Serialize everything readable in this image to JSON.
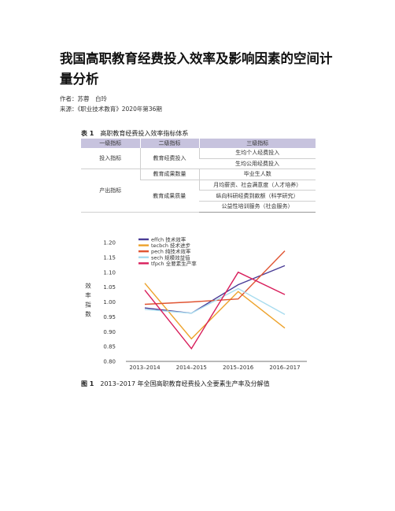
{
  "article": {
    "title": "我国高职教育经费投入效率及影响因素的空间计量分析",
    "authors": "作者：苏蓉　白玲",
    "source": "来源：《职业技术教育》2020年第36期"
  },
  "table": {
    "number": "表 1",
    "caption": "高职教育经费投入效率指标体系",
    "headers": [
      "一级指标",
      "二级指标",
      "三级指标"
    ],
    "groups": [
      {
        "level1": "投入指标",
        "subgroups": [
          {
            "level2": "教育经费投入",
            "level3": [
              "生均个人经费投入",
              "生均公用经费投入"
            ]
          }
        ]
      },
      {
        "level1": "产出指标",
        "subgroups": [
          {
            "level2": "教育成果数量",
            "level3": [
              "毕业生人数"
            ]
          },
          {
            "level2": "教育成果质量",
            "level3": [
              "月均薪资、社会满意度（人才培养）",
              "纵向科研经费到款额（科学研究）",
              "公益性培训服务（社会服务）"
            ]
          }
        ]
      }
    ]
  },
  "figure": {
    "number": "图 1",
    "caption": "2013–2017 年全国高职教育经费投入全要素生产率及分解值"
  },
  "chart_data": {
    "type": "line",
    "categories": [
      "2013–2014",
      "2014–2015",
      "2015–2016",
      "2016–2017"
    ],
    "ylabel": "效率指数",
    "ylim": [
      0.8,
      1.2
    ],
    "yticks": [
      "0.80",
      "0.85",
      "0.90",
      "0.95",
      "1.00",
      "1.05",
      "1.10",
      "1.15",
      "1.20"
    ],
    "grid": false,
    "legend_position": "top-left",
    "series": [
      {
        "name": "effch 技术效率",
        "color": "#4a3c96",
        "values": [
          0.98,
          0.962,
          1.058,
          1.122
        ]
      },
      {
        "name": "tecbch 技术进步",
        "color": "#eda22b",
        "values": [
          1.063,
          0.876,
          1.035,
          0.912
        ]
      },
      {
        "name": "pech 纯技术效率",
        "color": "#e05432",
        "values": [
          0.992,
          1.0,
          1.01,
          1.172
        ]
      },
      {
        "name": "sech 规模效益值",
        "color": "#a8dcef",
        "values": [
          0.975,
          0.962,
          1.045,
          0.958
        ]
      },
      {
        "name": "tfpch 全要素生产率",
        "color": "#d81e5b",
        "values": [
          1.04,
          0.843,
          1.1,
          1.025
        ]
      }
    ]
  }
}
